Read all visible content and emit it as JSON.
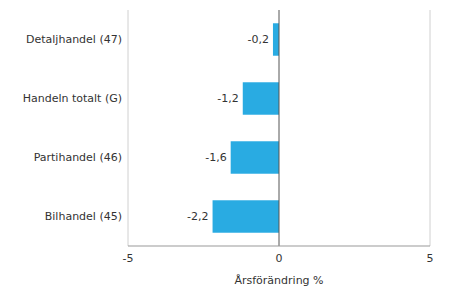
{
  "chart_data": {
    "type": "bar",
    "orientation": "horizontal",
    "categories": [
      "Bilhandel (45)",
      "Partihandel (46)",
      "Handeln totalt (G)",
      "Detaljhandel (47)"
    ],
    "values": [
      -2.2,
      -1.6,
      -1.2,
      -0.2
    ],
    "value_labels": [
      "-2,2",
      "-1,6",
      "-1,2",
      "-0,2"
    ],
    "data_labels": true,
    "color": "#29ABE2",
    "xlabel": "Årsförändring %",
    "xlim": [
      -5,
      5
    ],
    "xticks": [
      -5,
      0,
      5
    ],
    "grid": true
  }
}
